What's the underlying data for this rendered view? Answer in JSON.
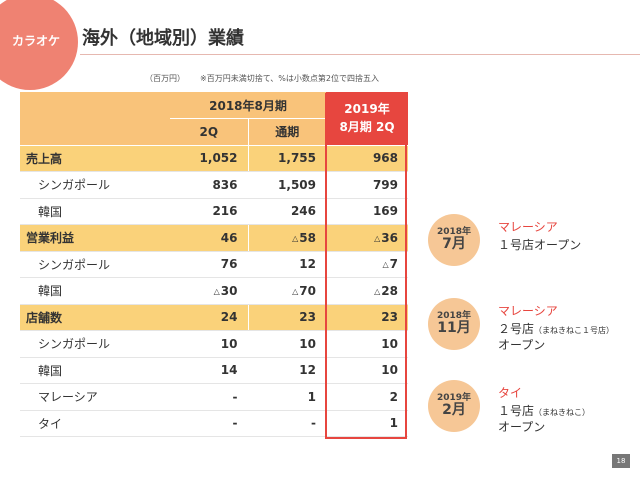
{
  "header": {
    "badge": "カラオケ",
    "title": "海外（地域別）業績"
  },
  "notes": {
    "unit": "（百万円）",
    "rounding": "※百万円未満切捨て、%は小数点第2位で四捨五入"
  },
  "table": {
    "group_header": "2018年8月期",
    "fy_header_line1": "2019年",
    "fy_header_line2": "8月期 2Q",
    "col_2q": "2Q",
    "col_full": "通期",
    "rows": [
      {
        "label": "売上高",
        "v1": "1,052",
        "v2": "1,755",
        "v3": "968"
      },
      {
        "label": "シンガポール",
        "v1": "836",
        "v2": "1,509",
        "v3": "799"
      },
      {
        "label": "韓国",
        "v1": "216",
        "v2": "246",
        "v3": "169"
      },
      {
        "label": "営業利益",
        "v1": "46",
        "v2": "58",
        "v3": "36"
      },
      {
        "label": "シンガポール",
        "v1": "76",
        "v2": "12",
        "v3": "7"
      },
      {
        "label": "韓国",
        "v1": "30",
        "v2": "70",
        "v3": "28"
      },
      {
        "label": "店舗数",
        "v1": "24",
        "v2": "23",
        "v3": "23"
      },
      {
        "label": "シンガポール",
        "v1": "10",
        "v2": "10",
        "v3": "10"
      },
      {
        "label": "韓国",
        "v1": "14",
        "v2": "12",
        "v3": "10"
      },
      {
        "label": "マレーシア",
        "v1": "-",
        "v2": "1",
        "v3": "2"
      },
      {
        "label": "タイ",
        "v1": "-",
        "v2": "-",
        "v3": "1"
      }
    ],
    "negative_marker": "△"
  },
  "events": [
    {
      "year": "2018年",
      "month": "7月",
      "title": "マレーシア",
      "line1": "１号店オープン",
      "line1_note": "",
      "line2": ""
    },
    {
      "year": "2018年",
      "month": "11月",
      "title": "マレーシア",
      "line1": "２号店",
      "line1_note": "（まねきねこ１号店）",
      "line2": "オープン"
    },
    {
      "year": "2019年",
      "month": "2月",
      "title": "タイ",
      "line1": "１号店",
      "line1_note": "（まねきねこ）",
      "line2": "オープン"
    }
  ],
  "page_number": "18",
  "colors": {
    "badge": "#ef8272",
    "header_fill": "#f9c37a",
    "section_fill": "#fad27a",
    "accent_red": "#e7463f",
    "event_circle": "#f6c796"
  }
}
